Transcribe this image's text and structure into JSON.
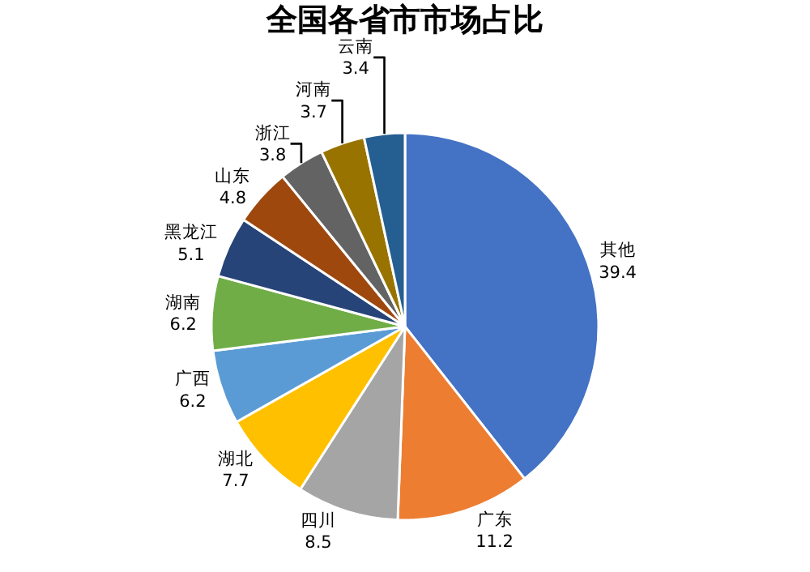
{
  "chart_data": {
    "type": "pie",
    "title": "全国各省市市场占比",
    "categories": [
      "其他",
      "广东",
      "四川",
      "湖北",
      "广西",
      "湖南",
      "黑龙江",
      "山东",
      "浙江",
      "河南",
      "云南"
    ],
    "values": [
      39.4,
      11.2,
      8.5,
      7.7,
      6.2,
      6.2,
      5.1,
      4.8,
      3.8,
      3.7,
      3.4
    ],
    "colors": [
      "#4472c4",
      "#ed7d31",
      "#a5a5a5",
      "#ffc000",
      "#5b9bd5",
      "#70ad47",
      "#264478",
      "#9e480e",
      "#636363",
      "#997300",
      "#255e91"
    ],
    "data_labels": true,
    "legend": false
  }
}
